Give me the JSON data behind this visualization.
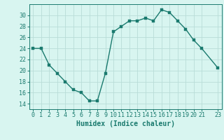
{
  "x": [
    0,
    1,
    2,
    3,
    4,
    5,
    6,
    7,
    8,
    9,
    10,
    11,
    12,
    13,
    14,
    15,
    16,
    17,
    18,
    19,
    20,
    21,
    23
  ],
  "y": [
    24,
    24,
    21,
    19.5,
    18,
    16.5,
    16,
    14.5,
    14.5,
    19.5,
    27,
    28,
    29,
    29,
    29.5,
    29,
    31,
    30.5,
    29,
    27.5,
    25.5,
    24,
    20.5
  ],
  "line_color": "#1a7a6e",
  "marker_color": "#1a7a6e",
  "bg_color": "#d8f5f0",
  "grid_color": "#b8ddd8",
  "xlabel": "Humidex (Indice chaleur)",
  "xlim": [
    -0.5,
    23.5
  ],
  "ylim": [
    13,
    32
  ],
  "yticks": [
    14,
    16,
    18,
    20,
    22,
    24,
    26,
    28,
    30
  ],
  "xticks": [
    0,
    1,
    2,
    3,
    4,
    5,
    6,
    7,
    8,
    9,
    10,
    11,
    12,
    13,
    14,
    15,
    16,
    17,
    18,
    19,
    20,
    21,
    23
  ],
  "xtick_labels": [
    "0",
    "1",
    "2",
    "3",
    "4",
    "5",
    "6",
    "7",
    "8",
    "9",
    "10",
    "11",
    "12",
    "13",
    "14",
    "15",
    "16",
    "17",
    "18",
    "19",
    "20",
    "21",
    "23"
  ],
  "tick_color": "#1a7a6e",
  "xlabel_fontsize": 7,
  "tick_fontsize": 6,
  "linewidth": 1.0,
  "markersize": 2.5
}
